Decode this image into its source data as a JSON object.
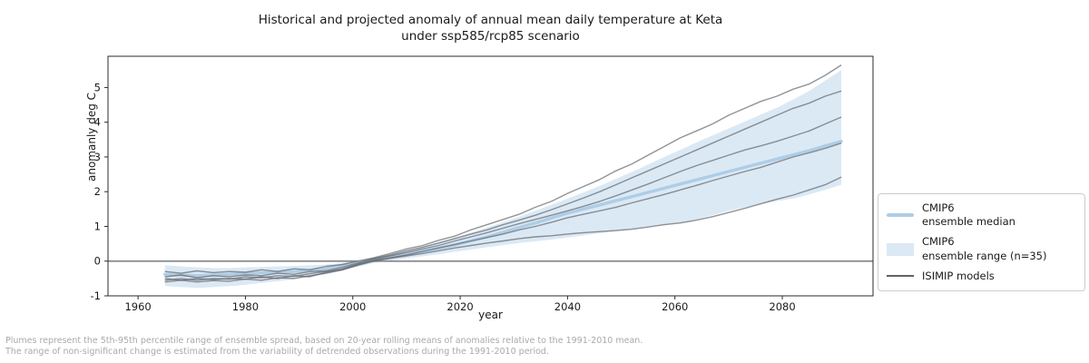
{
  "title": {
    "line1": "Historical and projected anomaly of annual mean daily temperature at Keta",
    "line2": "under ssp585/rcp85 scenario"
  },
  "axes": {
    "xlabel": "year",
    "ylabel": "anomanly deg C",
    "x_ticks": [
      1960,
      1980,
      2000,
      2020,
      2040,
      2060,
      2080
    ],
    "y_ticks": [
      -1,
      0,
      1,
      2,
      3,
      4,
      5
    ]
  },
  "legend": {
    "items": [
      {
        "swatch": "median-line-swatch",
        "line1": "CMIP6",
        "line2": "ensemble median"
      },
      {
        "swatch": "range-patch-swatch",
        "line1": "CMIP6",
        "line2": "ensemble range (n=35)"
      },
      {
        "swatch": "model-line-swatch",
        "line1": "ISIMIP models",
        "line2": ""
      }
    ]
  },
  "footnote": {
    "line1": "Plumes represent the 5th-95th percentile range of ensemble spread, based on 20-year rolling means of anomalies relative to the 1991-2010 mean.",
    "line2": "The range of non-significant change is estimated from the variability of detrended observations during the 1991-2010 period."
  },
  "colors": {
    "plume_fill": "#dbe9f5",
    "median_line": "#aecde6",
    "model_line": "#5f6266",
    "zero_line": "#85878a",
    "spine": "#2b2b2b",
    "tick_label": "#1a1a1a",
    "footnote_text": "#a9a9a9",
    "legend_border": "#cccccc"
  },
  "chart_data": {
    "type": "line",
    "title": "Historical and projected anomaly of annual mean daily temperature at Keta under ssp585/rcp85 scenario",
    "xlabel": "year",
    "ylabel": "anomanly deg C",
    "xlim": [
      1954.4,
      2096.9
    ],
    "ylim": [
      -1.0,
      5.9
    ],
    "grid": false,
    "legend_position": "center right, outside axes",
    "zero_line": 0,
    "x": [
      1965,
      1968,
      1971,
      1974,
      1977,
      1980,
      1983,
      1986,
      1989,
      1992,
      1995,
      1998,
      2001,
      2004,
      2007,
      2010,
      2013,
      2016,
      2019,
      2022,
      2025,
      2028,
      2031,
      2034,
      2037,
      2040,
      2043,
      2046,
      2049,
      2052,
      2055,
      2058,
      2061,
      2064,
      2067,
      2070,
      2073,
      2076,
      2079,
      2082,
      2085,
      2088,
      2091
    ],
    "series": [
      {
        "name": "CMIP6 ensemble range upper (95th percentile)",
        "role": "band_upper",
        "values": [
          -0.12,
          -0.15,
          -0.18,
          -0.2,
          -0.2,
          -0.18,
          -0.17,
          -0.15,
          -0.14,
          -0.12,
          -0.1,
          -0.05,
          0.0,
          0.08,
          0.18,
          0.3,
          0.42,
          0.55,
          0.68,
          0.82,
          0.97,
          1.12,
          1.28,
          1.45,
          1.62,
          1.8,
          1.98,
          2.17,
          2.37,
          2.57,
          2.78,
          3.0,
          3.2,
          3.42,
          3.62,
          3.82,
          4.02,
          4.22,
          4.42,
          4.65,
          4.9,
          5.2,
          5.5
        ]
      },
      {
        "name": "CMIP6 ensemble range lower (5th percentile)",
        "role": "band_lower",
        "values": [
          -0.72,
          -0.75,
          -0.77,
          -0.75,
          -0.72,
          -0.68,
          -0.63,
          -0.58,
          -0.52,
          -0.45,
          -0.38,
          -0.28,
          -0.15,
          -0.05,
          0.02,
          0.08,
          0.14,
          0.2,
          0.27,
          0.33,
          0.4,
          0.46,
          0.52,
          0.57,
          0.62,
          0.68,
          0.74,
          0.8,
          0.87,
          0.94,
          1.0,
          1.05,
          1.1,
          1.2,
          1.32,
          1.45,
          1.55,
          1.65,
          1.73,
          1.8,
          1.92,
          2.05,
          2.2
        ]
      },
      {
        "name": "CMIP6 ensemble median",
        "role": "median",
        "values": [
          -0.38,
          -0.4,
          -0.42,
          -0.4,
          -0.38,
          -0.36,
          -0.34,
          -0.32,
          -0.3,
          -0.27,
          -0.22,
          -0.12,
          -0.03,
          0.05,
          0.12,
          0.2,
          0.28,
          0.37,
          0.47,
          0.58,
          0.7,
          0.83,
          0.97,
          1.1,
          1.24,
          1.38,
          1.5,
          1.62,
          1.74,
          1.86,
          1.98,
          2.1,
          2.22,
          2.34,
          2.46,
          2.58,
          2.7,
          2.82,
          2.94,
          3.06,
          3.18,
          3.32,
          3.45
        ]
      },
      {
        "name": "ISIMIP model 1",
        "role": "model",
        "values": [
          -0.3,
          -0.35,
          -0.28,
          -0.33,
          -0.3,
          -0.32,
          -0.25,
          -0.3,
          -0.22,
          -0.25,
          -0.15,
          -0.1,
          0.0,
          0.1,
          0.22,
          0.35,
          0.45,
          0.6,
          0.72,
          0.9,
          1.05,
          1.2,
          1.35,
          1.55,
          1.72,
          1.95,
          2.15,
          2.35,
          2.6,
          2.8,
          3.05,
          3.3,
          3.55,
          3.75,
          3.95,
          4.2,
          4.4,
          4.6,
          4.75,
          4.95,
          5.1,
          5.35,
          5.65
        ]
      },
      {
        "name": "ISIMIP model 2",
        "role": "model",
        "values": [
          -0.45,
          -0.4,
          -0.48,
          -0.42,
          -0.45,
          -0.4,
          -0.42,
          -0.35,
          -0.38,
          -0.3,
          -0.28,
          -0.18,
          -0.05,
          0.08,
          0.18,
          0.3,
          0.4,
          0.52,
          0.65,
          0.78,
          0.9,
          1.05,
          1.18,
          1.32,
          1.48,
          1.65,
          1.82,
          2.0,
          2.2,
          2.4,
          2.6,
          2.8,
          3.0,
          3.2,
          3.4,
          3.6,
          3.8,
          4.0,
          4.2,
          4.4,
          4.55,
          4.75,
          4.9
        ]
      },
      {
        "name": "ISIMIP model 3",
        "role": "model",
        "values": [
          -0.55,
          -0.5,
          -0.55,
          -0.5,
          -0.52,
          -0.45,
          -0.48,
          -0.42,
          -0.44,
          -0.36,
          -0.3,
          -0.22,
          -0.08,
          0.05,
          0.15,
          0.25,
          0.35,
          0.45,
          0.58,
          0.7,
          0.82,
          0.95,
          1.08,
          1.2,
          1.32,
          1.45,
          1.58,
          1.72,
          1.88,
          2.05,
          2.22,
          2.4,
          2.58,
          2.75,
          2.9,
          3.05,
          3.2,
          3.32,
          3.45,
          3.6,
          3.75,
          3.95,
          4.15
        ]
      },
      {
        "name": "ISIMIP model 4",
        "role": "model",
        "values": [
          -0.6,
          -0.55,
          -0.6,
          -0.56,
          -0.58,
          -0.52,
          -0.55,
          -0.48,
          -0.5,
          -0.42,
          -0.35,
          -0.25,
          -0.1,
          0.02,
          0.1,
          0.18,
          0.28,
          0.38,
          0.48,
          0.58,
          0.68,
          0.78,
          0.9,
          1.0,
          1.12,
          1.25,
          1.35,
          1.45,
          1.55,
          1.68,
          1.8,
          1.92,
          2.05,
          2.18,
          2.32,
          2.45,
          2.58,
          2.7,
          2.85,
          3.0,
          3.12,
          3.25,
          3.4
        ]
      },
      {
        "name": "ISIMIP model 5",
        "role": "model",
        "values": [
          -0.5,
          -0.55,
          -0.5,
          -0.53,
          -0.5,
          -0.52,
          -0.45,
          -0.5,
          -0.42,
          -0.45,
          -0.32,
          -0.25,
          -0.12,
          0.0,
          0.08,
          0.15,
          0.22,
          0.3,
          0.38,
          0.45,
          0.52,
          0.58,
          0.65,
          0.7,
          0.73,
          0.78,
          0.82,
          0.85,
          0.88,
          0.92,
          0.98,
          1.05,
          1.1,
          1.18,
          1.28,
          1.4,
          1.52,
          1.65,
          1.78,
          1.9,
          2.05,
          2.2,
          2.42
        ]
      }
    ]
  }
}
